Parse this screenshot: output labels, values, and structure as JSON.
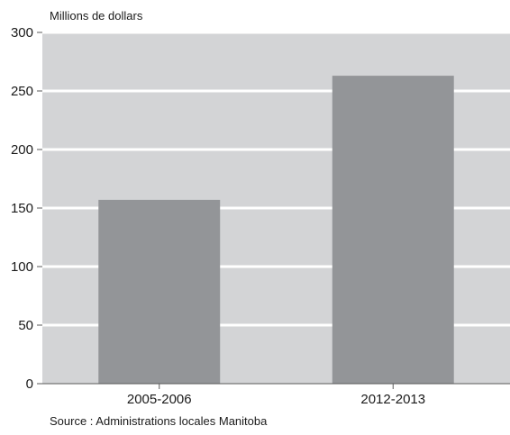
{
  "chart_data": {
    "type": "bar",
    "categories": [
      "2005-2006",
      "2012-2013"
    ],
    "values": [
      157,
      263
    ],
    "ylabel": "Millions de dollars",
    "ylim": [
      0,
      300
    ],
    "yticks": [
      0,
      50,
      100,
      150,
      200,
      250,
      300
    ],
    "grid": true,
    "source": "Source : Administrations locales Manitoba",
    "colors": {
      "plot_background": "#d3d4d6",
      "bar": "#939598",
      "grid": "#ffffff",
      "axis": "#5a5a5a"
    }
  }
}
